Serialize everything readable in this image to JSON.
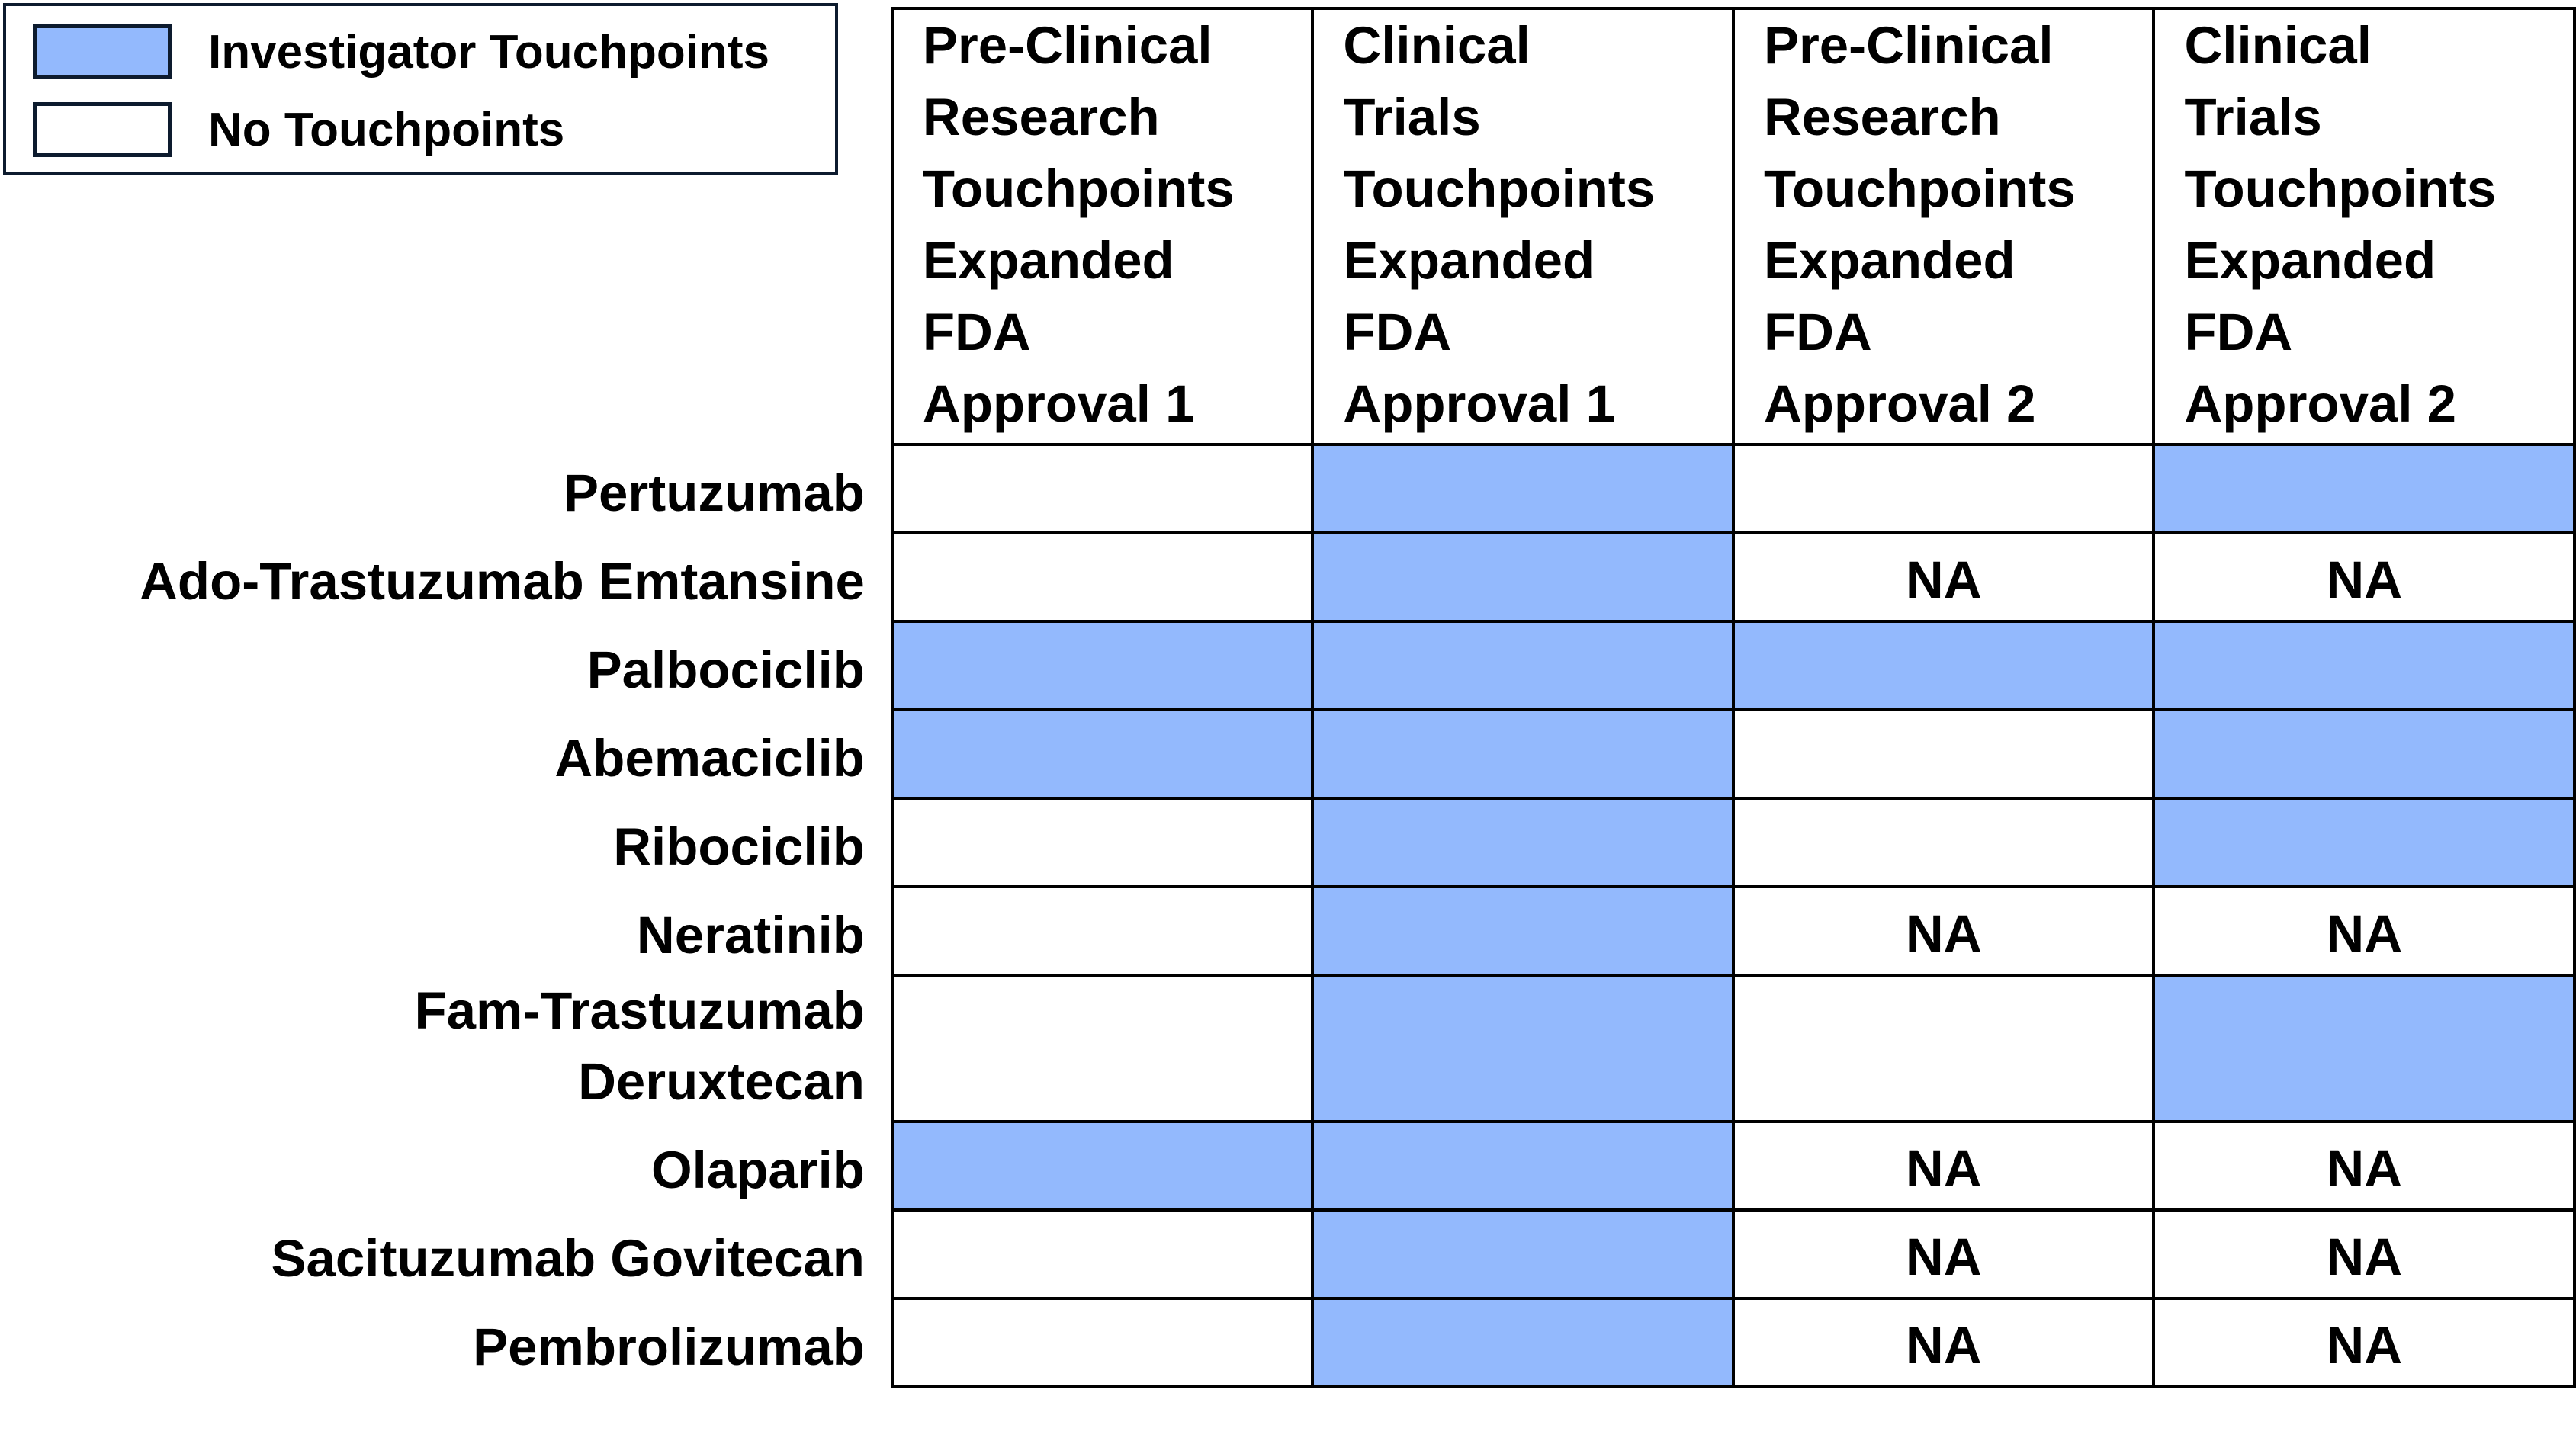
{
  "legend": [
    {
      "label": "Investigator Touchpoints",
      "color": "#93b9fd"
    },
    {
      "label": "No Touchpoints",
      "color": "#ffffff"
    }
  ],
  "table": {
    "headers": [
      [
        "Pre-Clinical",
        "Research",
        "Touchpoints",
        "Expanded",
        "FDA",
        "Approval 1"
      ],
      [
        "Clinical",
        "Trials",
        "Touchpoints",
        "Expanded",
        "FDA",
        "Approval 1"
      ],
      [
        "Pre-Clinical",
        "Research",
        "Touchpoints",
        "Expanded",
        "FDA",
        "Approval 2"
      ],
      [
        "Clinical",
        "Trials",
        "Touchpoints",
        "Expanded",
        "FDA",
        "Approval 2"
      ]
    ],
    "rows": [
      {
        "name": "Pertuzumab",
        "cells": [
          false,
          true,
          false,
          true
        ]
      },
      {
        "name": "Ado-Trastuzumab Emtansine",
        "cells": [
          false,
          true,
          "NA",
          "NA"
        ]
      },
      {
        "name": "Palbociclib",
        "cells": [
          true,
          true,
          true,
          true
        ]
      },
      {
        "name": "Abemaciclib",
        "cells": [
          true,
          true,
          false,
          true
        ]
      },
      {
        "name": "Ribociclib",
        "cells": [
          false,
          true,
          false,
          true
        ]
      },
      {
        "name": "Neratinib",
        "cells": [
          false,
          true,
          "NA",
          "NA"
        ]
      },
      {
        "name": "Fam-Trastuzumab Deruxtecan",
        "cells": [
          false,
          true,
          false,
          true
        ]
      },
      {
        "name": "Olaparib",
        "cells": [
          true,
          true,
          "NA",
          "NA"
        ]
      },
      {
        "name": "Sacituzumab Govitecan",
        "cells": [
          false,
          true,
          "NA",
          "NA"
        ]
      },
      {
        "name": "Pembrolizumab",
        "cells": [
          false,
          true,
          "NA",
          "NA"
        ]
      }
    ]
  }
}
